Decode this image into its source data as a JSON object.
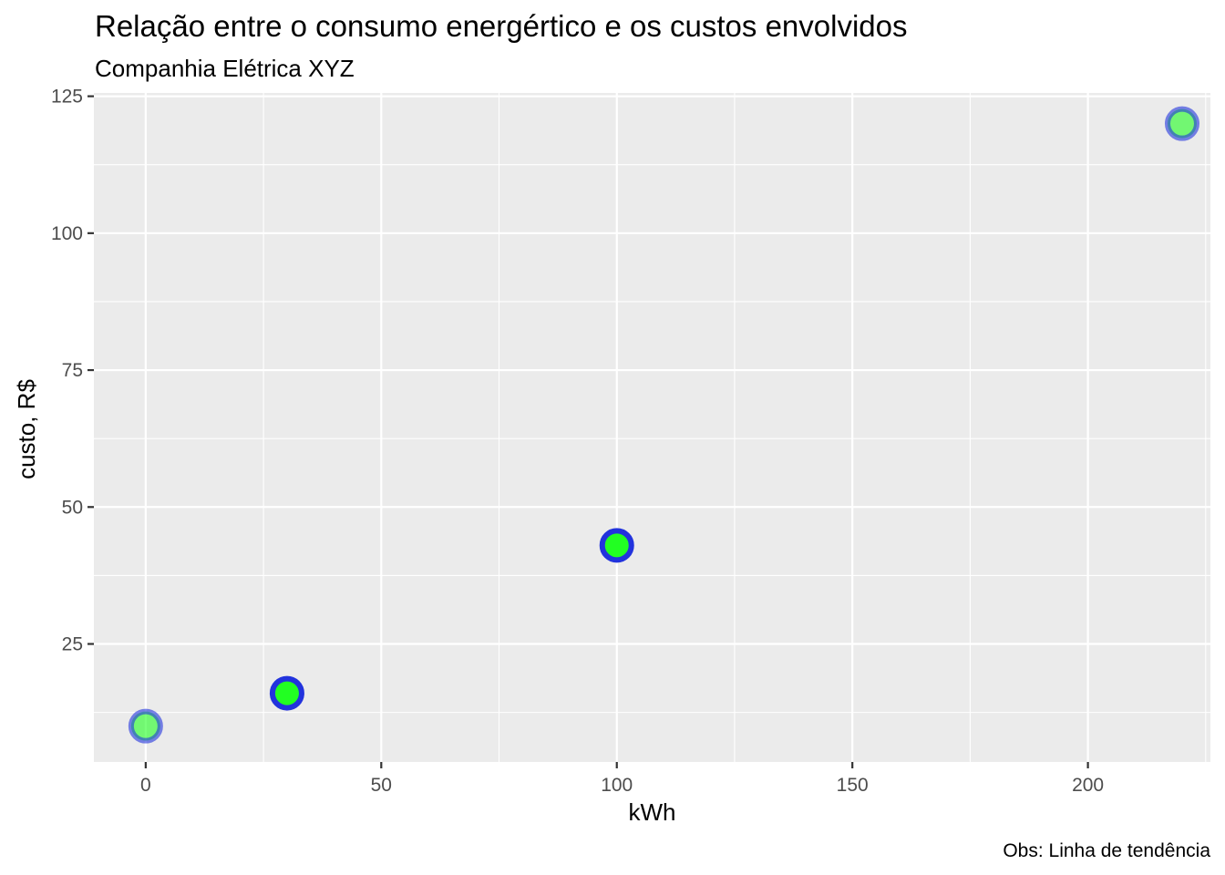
{
  "chart_data": {
    "type": "scatter",
    "title": "Relação entre o consumo energértico e os custos envolvidos",
    "subtitle": "Companhia Elétrica XYZ",
    "xlabel": "kWh",
    "ylabel": "custo, R$",
    "caption": "Obs: Linha de tendência",
    "xlim": [
      -11,
      226
    ],
    "ylim": [
      3.45,
      125.6
    ],
    "x_ticks": [
      0,
      50,
      100,
      150,
      200
    ],
    "y_ticks": [
      25,
      50,
      75,
      100,
      125
    ],
    "x_tick_labels": [
      "0",
      "50",
      "100",
      "150",
      "200"
    ],
    "y_tick_labels": [
      "25",
      "50",
      "75",
      "100",
      "125"
    ],
    "grid": true,
    "points": [
      {
        "x": 0,
        "y": 10,
        "alpha": 0.6
      },
      {
        "x": 30,
        "y": 16,
        "alpha": 1.0
      },
      {
        "x": 100,
        "y": 43,
        "alpha": 1.0
      },
      {
        "x": 220,
        "y": 120,
        "alpha": 0.6
      }
    ],
    "colors": {
      "panel_background": "#ebebeb",
      "grid_major": "#ffffff",
      "point_fill": "#22ff22",
      "point_stroke": "#2233dd",
      "tick_color": "#333333"
    }
  }
}
